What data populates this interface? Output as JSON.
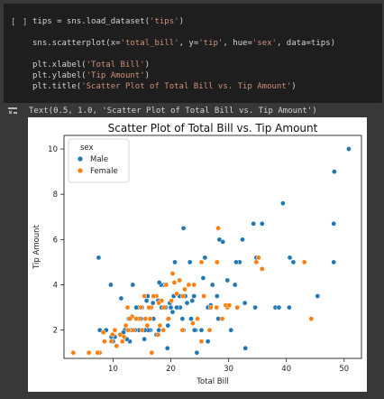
{
  "cell": {
    "run_label": "[ ]",
    "code_lines": [
      [
        {
          "t": "tips = sns.load_dataset("
        },
        {
          "t": "'tips'",
          "s": 1
        },
        {
          "t": ")"
        }
      ],
      [],
      [
        {
          "t": "sns.scatterplot(x="
        },
        {
          "t": "'total_bill'",
          "s": 1
        },
        {
          "t": ", y="
        },
        {
          "t": "'tip'",
          "s": 1
        },
        {
          "t": ", hue="
        },
        {
          "t": "'sex'",
          "s": 1
        },
        {
          "t": ", data=tips)"
        }
      ],
      [],
      [
        {
          "t": "plt.xlabel("
        },
        {
          "t": "'Total Bill'",
          "s": 1
        },
        {
          "t": ")"
        }
      ],
      [
        {
          "t": "plt.ylabel("
        },
        {
          "t": "'Tip Amount'",
          "s": 1
        },
        {
          "t": ")"
        }
      ],
      [
        {
          "t": "plt.title("
        },
        {
          "t": "'Scatter Plot of Total Bill vs. Tip Amount'",
          "s": 1
        },
        {
          "t": ")"
        }
      ]
    ]
  },
  "output": {
    "icon": "output-toggle-icon",
    "text": "Text(0.5, 1.0, 'Scatter Plot of Total Bill vs. Tip Amount')"
  },
  "chart_data": {
    "type": "scatter",
    "title": "Scatter Plot of Total Bill vs. Tip Amount",
    "xlabel": "Total Bill",
    "ylabel": "Tip Amount",
    "xlim": [
      1.5,
      53
    ],
    "ylim": [
      0.75,
      10.6
    ],
    "xticks": [
      10,
      20,
      30,
      40,
      50
    ],
    "yticks": [
      2,
      4,
      6,
      8,
      10
    ],
    "grid": false,
    "legend": {
      "title": "sex",
      "placement": "top-left"
    },
    "series": [
      {
        "name": "Male",
        "color": "#1f77b4",
        "points": [
          [
            50.8,
            10.0
          ],
          [
            48.3,
            9.0
          ],
          [
            48.2,
            6.7
          ],
          [
            48.2,
            5.0
          ],
          [
            39.4,
            7.6
          ],
          [
            43.1,
            5.0
          ],
          [
            40.6,
            5.2
          ],
          [
            41.2,
            5.0
          ],
          [
            45.4,
            3.5
          ],
          [
            40.5,
            3.0
          ],
          [
            38.1,
            3.0
          ],
          [
            38.7,
            3.0
          ],
          [
            35.8,
            6.7
          ],
          [
            34.8,
            5.2
          ],
          [
            34.6,
            3.0
          ],
          [
            34.3,
            6.7
          ],
          [
            32.4,
            6.0
          ],
          [
            32.9,
            1.2
          ],
          [
            32.8,
            3.2
          ],
          [
            31.9,
            5.0
          ],
          [
            31.3,
            5.0
          ],
          [
            31.1,
            4.0
          ],
          [
            30.4,
            2.0
          ],
          [
            29.8,
            4.2
          ],
          [
            29.0,
            5.9
          ],
          [
            28.4,
            6.0
          ],
          [
            28.2,
            2.5
          ],
          [
            27.2,
            4.0
          ],
          [
            26.9,
            3.1
          ],
          [
            26.4,
            1.5
          ],
          [
            26.4,
            3.0
          ],
          [
            25.9,
            5.2
          ],
          [
            25.6,
            4.3
          ],
          [
            25.3,
            2.0
          ],
          [
            24.5,
            1.0
          ],
          [
            24.3,
            2.0
          ],
          [
            24.1,
            2.0
          ],
          [
            23.7,
            3.3
          ],
          [
            23.3,
            5.0
          ],
          [
            22.8,
            3.2
          ],
          [
            22.5,
            3.5
          ],
          [
            22.2,
            6.5
          ],
          [
            22.2,
            2.0
          ],
          [
            21.6,
            3.0
          ],
          [
            21.0,
            3.0
          ],
          [
            20.7,
            5.0
          ],
          [
            20.5,
            3.5
          ],
          [
            20.3,
            2.8
          ],
          [
            19.8,
            3.2
          ],
          [
            19.5,
            2.2
          ],
          [
            19.4,
            1.2
          ],
          [
            19.1,
            3.0
          ],
          [
            18.8,
            4.0
          ],
          [
            18.4,
            3.0
          ],
          [
            18.3,
            4.0
          ],
          [
            17.9,
            2.0
          ],
          [
            17.8,
            3.3
          ],
          [
            17.5,
            1.8
          ],
          [
            17.3,
            3.5
          ],
          [
            16.9,
            3.2
          ],
          [
            16.5,
            2.0
          ],
          [
            16.3,
            2.0
          ],
          [
            16.0,
            2.0
          ],
          [
            15.5,
            2.0
          ],
          [
            15.4,
            1.6
          ],
          [
            15.0,
            3.0
          ],
          [
            14.8,
            2.5
          ],
          [
            14.5,
            2.0
          ],
          [
            14.3,
            3.0
          ],
          [
            14.0,
            3.0
          ],
          [
            13.4,
            4.0
          ],
          [
            13.0,
            2.5
          ],
          [
            12.9,
            1.5
          ],
          [
            12.7,
            2.5
          ],
          [
            12.4,
            1.6
          ],
          [
            12.0,
            2.0
          ],
          [
            11.4,
            3.4
          ],
          [
            10.3,
            1.7
          ],
          [
            10.0,
            1.5
          ],
          [
            9.7,
            1.7
          ],
          [
            9.6,
            4.0
          ],
          [
            8.8,
            2.0
          ],
          [
            8.5,
            1.5
          ],
          [
            7.7,
            2.0
          ],
          [
            7.5,
            5.2
          ],
          [
            13.8,
            2.0
          ],
          [
            18.0,
            4.1
          ],
          [
            21.5,
            3.5
          ],
          [
            24.0,
            3.5
          ],
          [
            22.0,
            2.5
          ],
          [
            17.0,
            2.5
          ],
          [
            16.0,
            3.5
          ],
          [
            28.0,
            3.5
          ],
          [
            14.0,
            2.5
          ],
          [
            11.8,
            1.9
          ],
          [
            13.2,
            2.0
          ],
          [
            20.0,
            3.0
          ],
          [
            15.8,
            3.3
          ],
          [
            23.5,
            2.5
          ],
          [
            19.5,
            2.5
          ]
        ]
      },
      {
        "name": "Female",
        "color": "#ff7f0e",
        "points": [
          [
            44.3,
            2.5
          ],
          [
            43.1,
            5.0
          ],
          [
            35.8,
            4.7
          ],
          [
            35.2,
            5.2
          ],
          [
            34.8,
            5.0
          ],
          [
            29.8,
            3.0
          ],
          [
            29.5,
            3.1
          ],
          [
            28.2,
            6.5
          ],
          [
            28.0,
            5.0
          ],
          [
            27.9,
            3.0
          ],
          [
            26.9,
            3.0
          ],
          [
            25.7,
            3.5
          ],
          [
            25.3,
            5.0
          ],
          [
            24.6,
            2.5
          ],
          [
            24.0,
            4.0
          ],
          [
            23.1,
            4.0
          ],
          [
            22.1,
            3.5
          ],
          [
            21.0,
            3.6
          ],
          [
            20.6,
            4.1
          ],
          [
            20.3,
            4.5
          ],
          [
            20.1,
            3.3
          ],
          [
            19.6,
            2.5
          ],
          [
            19.2,
            4.0
          ],
          [
            18.8,
            3.0
          ],
          [
            18.4,
            3.3
          ],
          [
            18.1,
            2.2
          ],
          [
            17.9,
            3.2
          ],
          [
            17.5,
            3.5
          ],
          [
            17.0,
            3.5
          ],
          [
            16.6,
            3.0
          ],
          [
            16.4,
            2.5
          ],
          [
            16.2,
            3.0
          ],
          [
            15.9,
            2.2
          ],
          [
            15.6,
            2.5
          ],
          [
            15.4,
            3.5
          ],
          [
            14.8,
            3.0
          ],
          [
            14.5,
            2.5
          ],
          [
            14.0,
            2.5
          ],
          [
            13.5,
            2.0
          ],
          [
            13.3,
            2.6
          ],
          [
            12.9,
            2.5
          ],
          [
            12.6,
            2.0
          ],
          [
            12.2,
            2.2
          ],
          [
            11.6,
            1.5
          ],
          [
            11.2,
            1.8
          ],
          [
            10.6,
            1.3
          ],
          [
            10.3,
            2.0
          ],
          [
            9.9,
            1.8
          ],
          [
            9.7,
            1.5
          ],
          [
            8.5,
            1.5
          ],
          [
            7.7,
            1.0
          ],
          [
            7.3,
            1.0
          ],
          [
            5.8,
            1.0
          ],
          [
            3.1,
            1.0
          ],
          [
            25.3,
            1.5
          ],
          [
            26.7,
            2.0
          ],
          [
            30.1,
            3.1
          ],
          [
            22.4,
            3.8
          ],
          [
            18.7,
            2.0
          ],
          [
            15.0,
            2.0
          ],
          [
            11.9,
            1.7
          ],
          [
            8.3,
            1.9
          ],
          [
            28.9,
            2.5
          ],
          [
            31.5,
            3.0
          ],
          [
            23.8,
            2.3
          ],
          [
            17.8,
            1.8
          ],
          [
            16.7,
            1.0
          ],
          [
            12.5,
            3.0
          ],
          [
            21.5,
            4.2
          ],
          [
            22.0,
            2.0
          ]
        ]
      }
    ]
  }
}
